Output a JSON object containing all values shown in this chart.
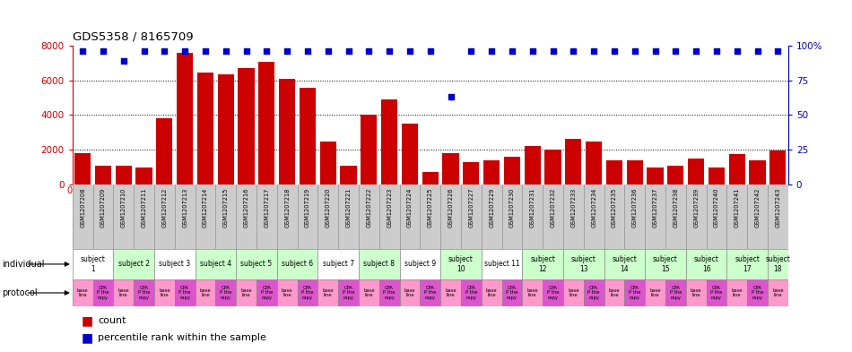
{
  "title": "GDS5358 / 8165709",
  "samples": [
    "GSM1207208",
    "GSM1207209",
    "GSM1207210",
    "GSM1207211",
    "GSM1207212",
    "GSM1207213",
    "GSM1207214",
    "GSM1207215",
    "GSM1207216",
    "GSM1207217",
    "GSM1207218",
    "GSM1207219",
    "GSM1207220",
    "GSM1207221",
    "GSM1207222",
    "GSM1207223",
    "GSM1207224",
    "GSM1207225",
    "GSM1207226",
    "GSM1207227",
    "GSM1207229",
    "GSM1207230",
    "GSM1207231",
    "GSM1207232",
    "GSM1207233",
    "GSM1207234",
    "GSM1207235",
    "GSM1207236",
    "GSM1207237",
    "GSM1207238",
    "GSM1207239",
    "GSM1207240",
    "GSM1207241",
    "GSM1207242",
    "GSM1207243"
  ],
  "counts": [
    1800,
    1100,
    1100,
    950,
    3800,
    7600,
    6450,
    6350,
    6700,
    7100,
    6100,
    5550,
    2450,
    1100,
    4050,
    4900,
    3500,
    700,
    1800,
    1300,
    1400,
    1600,
    2200,
    2000,
    2650,
    2450,
    1400,
    1400,
    1000,
    1100,
    1500,
    1000,
    1750,
    1400,
    1950
  ],
  "percentile": [
    96,
    96,
    89,
    96,
    96,
    96,
    96,
    96,
    96,
    96,
    96,
    96,
    96,
    96,
    96,
    96,
    96,
    96,
    63,
    96,
    96,
    96,
    96,
    96,
    96,
    96,
    96,
    96,
    96,
    96,
    96,
    96,
    96,
    96,
    96
  ],
  "bar_color": "#cc0000",
  "dot_color": "#0000cc",
  "ylim_left": [
    0,
    8000
  ],
  "ylim_right": [
    0,
    100
  ],
  "yticks_left": [
    0,
    2000,
    4000,
    6000,
    8000
  ],
  "yticks_right": [
    0,
    25,
    50,
    75,
    100
  ],
  "grid_values": [
    2000,
    4000,
    6000
  ],
  "subjects": [
    {
      "label": "subject\n1",
      "start": 0,
      "end": 2,
      "color": "#ffffff"
    },
    {
      "label": "subject 2",
      "start": 2,
      "end": 4,
      "color": "#ccffcc"
    },
    {
      "label": "subject 3",
      "start": 4,
      "end": 6,
      "color": "#ffffff"
    },
    {
      "label": "subject 4",
      "start": 6,
      "end": 8,
      "color": "#ccffcc"
    },
    {
      "label": "subject 5",
      "start": 8,
      "end": 10,
      "color": "#ccffcc"
    },
    {
      "label": "subject 6",
      "start": 10,
      "end": 12,
      "color": "#ccffcc"
    },
    {
      "label": "subject 7",
      "start": 12,
      "end": 14,
      "color": "#ffffff"
    },
    {
      "label": "subject 8",
      "start": 14,
      "end": 16,
      "color": "#ccffcc"
    },
    {
      "label": "subject 9",
      "start": 16,
      "end": 18,
      "color": "#ffffff"
    },
    {
      "label": "subject\n10",
      "start": 18,
      "end": 20,
      "color": "#ccffcc"
    },
    {
      "label": "subject 11",
      "start": 20,
      "end": 22,
      "color": "#ffffff"
    },
    {
      "label": "subject\n12",
      "start": 22,
      "end": 24,
      "color": "#ccffcc"
    },
    {
      "label": "subject\n13",
      "start": 24,
      "end": 26,
      "color": "#ccffcc"
    },
    {
      "label": "subject\n14",
      "start": 26,
      "end": 28,
      "color": "#ccffcc"
    },
    {
      "label": "subject\n15",
      "start": 28,
      "end": 30,
      "color": "#ccffcc"
    },
    {
      "label": "subject\n16",
      "start": 30,
      "end": 32,
      "color": "#ccffcc"
    },
    {
      "label": "subject\n17",
      "start": 32,
      "end": 34,
      "color": "#ccffcc"
    },
    {
      "label": "subject\n18",
      "start": 34,
      "end": 35,
      "color": "#ccffcc"
    }
  ],
  "bg_color": "#ffffff",
  "gsm_panel_color": "#cccccc",
  "tick_color_left": "#cc0000",
  "tick_color_right": "#0000cc",
  "legend_count_label": "count",
  "legend_pct_label": "percentile rank within the sample",
  "proto_colors_even": "#ff99cc",
  "proto_colors_odd": "#cc66cc"
}
